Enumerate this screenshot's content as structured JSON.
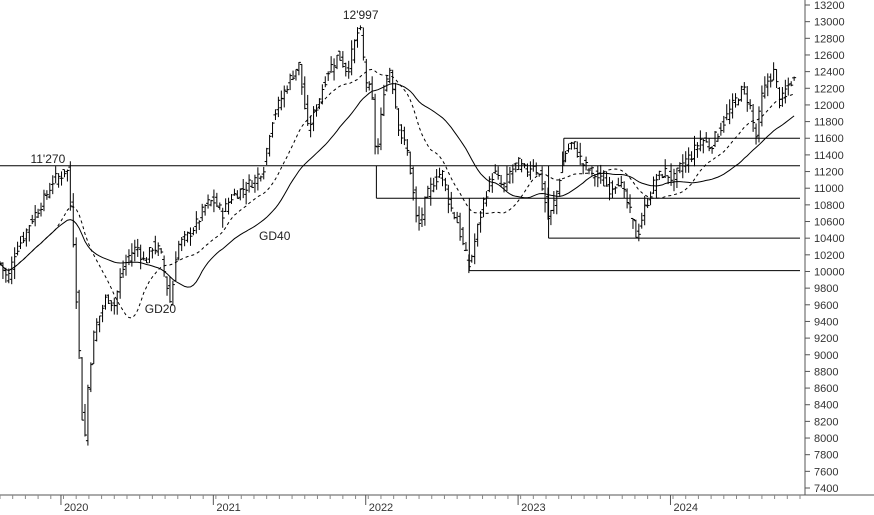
{
  "chart_data": {
    "type": "ohlc",
    "title": "",
    "xlabel": "",
    "ylabel": "",
    "ylim": [
      7400,
      13200
    ],
    "y_ticks": [
      7400,
      7600,
      7800,
      8000,
      8200,
      8400,
      8600,
      8800,
      9000,
      9200,
      9400,
      9600,
      9800,
      10000,
      10200,
      10400,
      10600,
      10800,
      11000,
      11200,
      11400,
      11600,
      11800,
      12000,
      12200,
      12400,
      12600,
      12800,
      13000,
      13200
    ],
    "x_range": [
      2019.6,
      2024.85
    ],
    "x_ticks": [
      {
        "label": "2020",
        "value": 2020
      },
      {
        "label": "2021",
        "value": 2021
      },
      {
        "label": "2022",
        "value": 2022
      },
      {
        "label": "2023",
        "value": 2023
      },
      {
        "label": "2024",
        "value": 2024
      }
    ],
    "annotations": [
      {
        "text": "11'270",
        "x": 2019.8,
        "y": 11300
      },
      {
        "text": "12'997",
        "x": 2021.85,
        "y": 13030
      },
      {
        "text": "GD40",
        "x": 2021.3,
        "y": 10380
      },
      {
        "text": "GD20",
        "x": 2020.55,
        "y": 9500
      }
    ],
    "horizontal_levels": [
      {
        "value": 11270,
        "x_start": 2019.6,
        "x_end": 2024.85
      },
      {
        "value": 10880,
        "x_start": 2022.07,
        "x_end": 2024.85
      },
      {
        "value": 11600,
        "x_start": 2023.3,
        "x_end": 2024.85
      },
      {
        "value": 10400,
        "x_start": 2023.2,
        "x_end": 2024.85
      },
      {
        "value": 10010,
        "x_start": 2022.68,
        "x_end": 2024.85
      }
    ],
    "vertical_connectors": [
      {
        "x": 2022.07,
        "y_from": 11270,
        "y_to": 10880
      },
      {
        "x": 2023.2,
        "y_from": 11270,
        "y_to": 10400
      },
      {
        "x": 2023.3,
        "y_from": 11270,
        "y_to": 11600
      },
      {
        "x": 2022.68,
        "y_from": 10880,
        "y_to": 10010
      }
    ],
    "price_path": [
      [
        2019.6,
        10100
      ],
      [
        2019.65,
        9900
      ],
      [
        2019.7,
        10250
      ],
      [
        2019.75,
        10400
      ],
      [
        2019.8,
        10600
      ],
      [
        2019.85,
        10750
      ],
      [
        2019.9,
        10900
      ],
      [
        2019.95,
        11100
      ],
      [
        2020.0,
        11150
      ],
      [
        2020.04,
        11250
      ],
      [
        2020.08,
        10400
      ],
      [
        2020.12,
        9000
      ],
      [
        2020.15,
        7800
      ],
      [
        2020.18,
        8700
      ],
      [
        2020.22,
        9300
      ],
      [
        2020.3,
        9700
      ],
      [
        2020.35,
        9600
      ],
      [
        2020.4,
        10000
      ],
      [
        2020.45,
        10200
      ],
      [
        2020.5,
        10300
      ],
      [
        2020.55,
        10100
      ],
      [
        2020.6,
        10300
      ],
      [
        2020.65,
        10250
      ],
      [
        2020.72,
        9600
      ],
      [
        2020.76,
        10300
      ],
      [
        2020.82,
        10400
      ],
      [
        2020.9,
        10600
      ],
      [
        2020.95,
        10800
      ],
      [
        2021.0,
        10850
      ],
      [
        2021.06,
        10700
      ],
      [
        2021.12,
        10900
      ],
      [
        2021.2,
        11000
      ],
      [
        2021.27,
        11100
      ],
      [
        2021.33,
        11250
      ],
      [
        2021.38,
        11800
      ],
      [
        2021.45,
        12100
      ],
      [
        2021.5,
        12300
      ],
      [
        2021.56,
        12500
      ],
      [
        2021.62,
        11700
      ],
      [
        2021.68,
        12000
      ],
      [
        2021.75,
        12400
      ],
      [
        2021.82,
        12600
      ],
      [
        2021.88,
        12400
      ],
      [
        2021.92,
        12700
      ],
      [
        2021.96,
        12950
      ],
      [
        2022.0,
        12300
      ],
      [
        2022.04,
        12100
      ],
      [
        2022.07,
        11300
      ],
      [
        2022.12,
        12200
      ],
      [
        2022.16,
        12450
      ],
      [
        2022.22,
        11700
      ],
      [
        2022.28,
        11400
      ],
      [
        2022.34,
        10500
      ],
      [
        2022.4,
        10900
      ],
      [
        2022.45,
        11100
      ],
      [
        2022.5,
        11200
      ],
      [
        2022.55,
        10800
      ],
      [
        2022.6,
        10600
      ],
      [
        2022.64,
        10300
      ],
      [
        2022.68,
        10050
      ],
      [
        2022.72,
        10400
      ],
      [
        2022.78,
        10900
      ],
      [
        2022.84,
        11200
      ],
      [
        2022.9,
        11000
      ],
      [
        2022.95,
        11200
      ],
      [
        2023.0,
        11300
      ],
      [
        2023.05,
        11200
      ],
      [
        2023.1,
        11300
      ],
      [
        2023.15,
        11100
      ],
      [
        2023.2,
        10600
      ],
      [
        2023.26,
        11000
      ],
      [
        2023.3,
        11400
      ],
      [
        2023.36,
        11550
      ],
      [
        2023.42,
        11300
      ],
      [
        2023.48,
        11200
      ],
      [
        2023.54,
        11100
      ],
      [
        2023.6,
        11000
      ],
      [
        2023.66,
        11100
      ],
      [
        2023.72,
        10800
      ],
      [
        2023.78,
        10400
      ],
      [
        2023.82,
        10700
      ],
      [
        2023.86,
        10900
      ],
      [
        2023.9,
        11100
      ],
      [
        2023.96,
        11200
      ],
      [
        2024.02,
        11100
      ],
      [
        2024.08,
        11300
      ],
      [
        2024.14,
        11400
      ],
      [
        2024.2,
        11600
      ],
      [
        2024.26,
        11500
      ],
      [
        2024.32,
        11700
      ],
      [
        2024.38,
        11900
      ],
      [
        2024.44,
        12100
      ],
      [
        2024.48,
        12200
      ],
      [
        2024.52,
        12000
      ],
      [
        2024.56,
        11600
      ],
      [
        2024.6,
        12100
      ],
      [
        2024.64,
        12300
      ],
      [
        2024.68,
        12400
      ],
      [
        2024.72,
        12000
      ],
      [
        2024.76,
        12200
      ],
      [
        2024.8,
        12300
      ]
    ]
  }
}
